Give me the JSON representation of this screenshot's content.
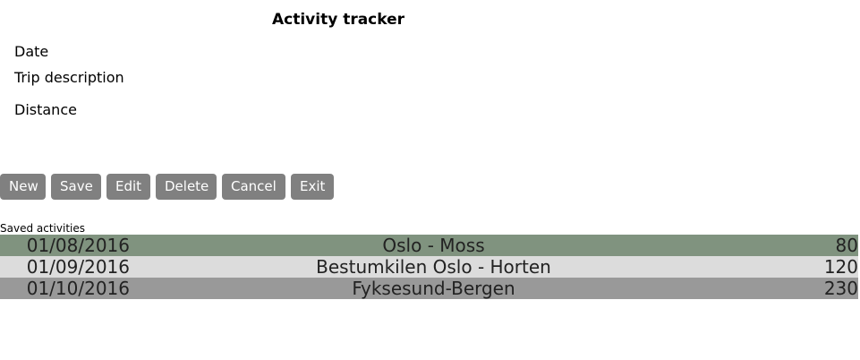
{
  "title": "Activity tracker",
  "form": {
    "date_label": "Date",
    "trip_label": "Trip description",
    "distance_label": "Distance"
  },
  "buttons": [
    "New",
    "Save",
    "Edit",
    "Delete",
    "Cancel",
    "Exit"
  ],
  "saved_label": "Saved activities",
  "row_colors": [
    "#80937f",
    "#dcdcdc",
    "#999999"
  ],
  "activities": [
    {
      "date": "01/08/2016",
      "description": "Oslo - Moss",
      "distance": "80"
    },
    {
      "date": "01/09/2016",
      "description": "Bestumkilen Oslo - Horten",
      "distance": "120"
    },
    {
      "date": "01/10/2016",
      "description": "Fyksesund-Bergen",
      "distance": "230"
    }
  ]
}
